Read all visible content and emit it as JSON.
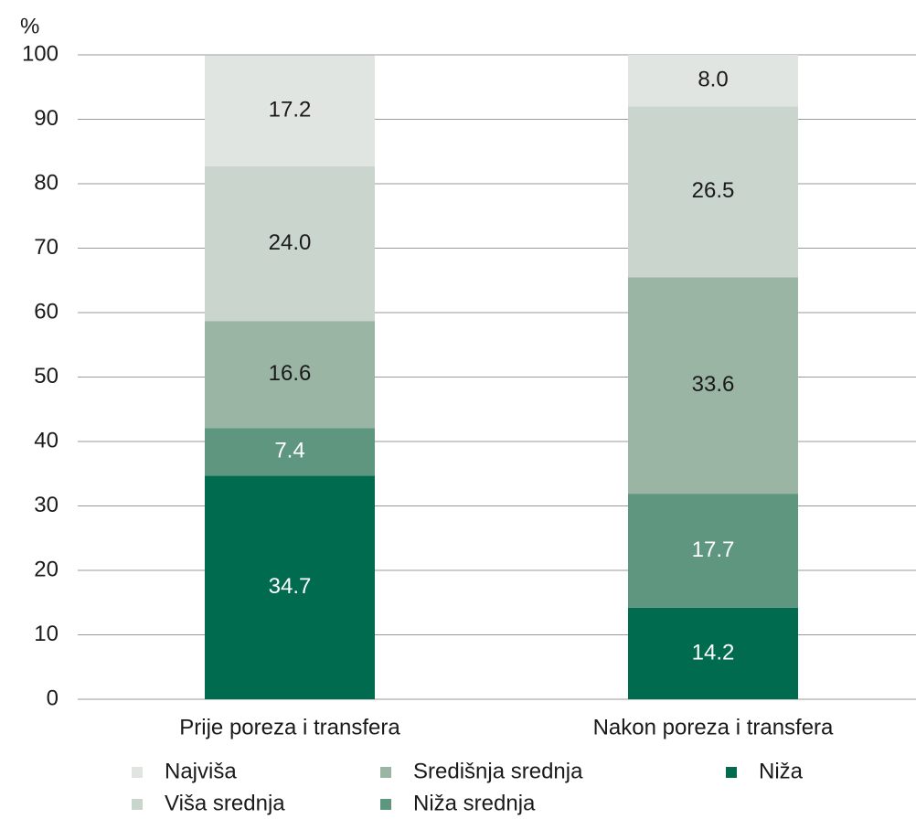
{
  "chart_data": {
    "type": "stacked_bar",
    "ylabel": "%",
    "categories": [
      "Prije poreza i transfera",
      "Nakon poreza i transfera"
    ],
    "series": [
      {
        "name": "Niža",
        "color": "#006b4f",
        "values": [
          34.7,
          14.2
        ]
      },
      {
        "name": "Niža srednja",
        "color": "#5e9680",
        "values": [
          7.4,
          17.7
        ]
      },
      {
        "name": "Središnja srednja",
        "color": "#9bb5a5",
        "values": [
          16.6,
          33.6
        ]
      },
      {
        "name": "Viša srednja",
        "color": "#c9d5cd",
        "values": [
          24,
          26.5
        ],
        "value_labels": [
          "24.0",
          "26.5"
        ]
      },
      {
        "name": "Najviša",
        "color": "#e0e5e1",
        "values": [
          17.2,
          8
        ],
        "value_labels": [
          "17.2",
          "8.0"
        ]
      }
    ],
    "ylim": [
      0,
      100
    ],
    "yticks": [
      0,
      10,
      20,
      30,
      40,
      50,
      60,
      70,
      80,
      90,
      100
    ],
    "grid": true
  }
}
